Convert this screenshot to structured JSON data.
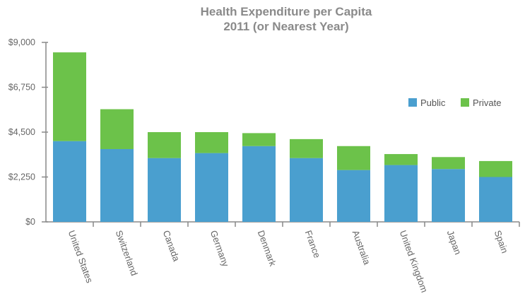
{
  "chart_data": {
    "type": "bar",
    "stacked": true,
    "title": "Health Expenditure per Capita",
    "subtitle": "2011 (or Nearest Year)",
    "xlabel": "",
    "ylabel": "",
    "ylim": [
      0,
      9000
    ],
    "yticks": [
      0,
      2250,
      4500,
      6750,
      9000
    ],
    "ytick_labels": [
      "$0",
      "$2,250",
      "$4,500",
      "$6,750",
      "$9,000"
    ],
    "categories": [
      "United States",
      "Switzerland",
      "Canada",
      "Germany",
      "Denmark",
      "France",
      "Australia",
      "United Kingdom",
      "Japan",
      "Spain"
    ],
    "series": [
      {
        "name": "Public",
        "color": "#4a9fcf",
        "values": [
          4050,
          3650,
          3200,
          3450,
          3800,
          3200,
          2600,
          2850,
          2650,
          2250
        ]
      },
      {
        "name": "Private",
        "color": "#6cc24a",
        "values": [
          4450,
          2000,
          1300,
          1050,
          650,
          950,
          1200,
          550,
          600,
          800
        ]
      }
    ],
    "legend_position": "right",
    "grid": false
  }
}
